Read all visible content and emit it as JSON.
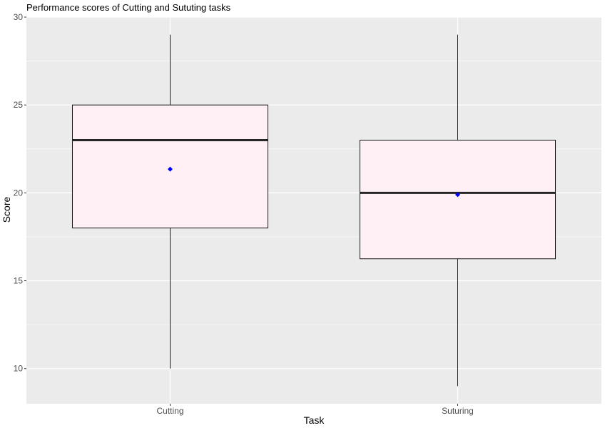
{
  "chart_data": {
    "type": "boxplot",
    "title": "Performance scores of Cutting and Sututing tasks",
    "xlabel": "Task",
    "ylabel": "Score",
    "ylim": [
      8,
      30
    ],
    "yticks": [
      "10",
      "15",
      "20",
      "25",
      "30"
    ],
    "yticks_values": [
      10,
      15,
      20,
      25,
      30
    ],
    "grid": true,
    "categories": [
      "Cutting",
      "Suturing"
    ],
    "boxes": [
      {
        "category": "Cutting",
        "min": 10,
        "q1": 18,
        "median": 23,
        "q3": 25,
        "max": 29,
        "mean": 21.35
      },
      {
        "category": "Suturing",
        "min": 9,
        "q1": 16.25,
        "median": 20,
        "q3": 23,
        "max": 29,
        "mean": 19.9
      }
    ],
    "colors": {
      "panel": "#ebebeb",
      "grid": "#ffffff",
      "box_fill": "#fff0f5",
      "box_stroke": "#1a1a1a",
      "median": "#262626",
      "mean_marker": "#0000ff"
    }
  }
}
